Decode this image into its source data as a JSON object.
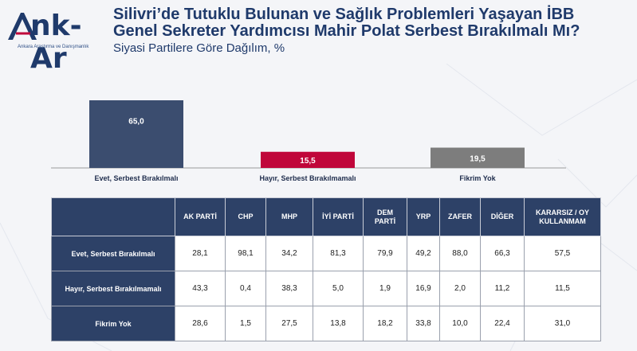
{
  "logo": {
    "name": "Ank-Ar",
    "tagline": "Ankara Araştırma ve Danışmanlık"
  },
  "header": {
    "title_line1": "Silivri’de Tutuklu Bulunan ve Sağlık Problemleri Yaşayan İBB",
    "title_line2": "Genel Sekreter Yardımcısı Mahir Polat Serbest Bırakılmalı Mı?",
    "subtitle": "Siyasi Partilere Göre Dağılım, %"
  },
  "colors": {
    "navy": "#3b4d6f",
    "red": "#c0063a",
    "gray": "#7d7d7d",
    "header": "#2d4167"
  },
  "chart_data": {
    "type": "bar",
    "categories": [
      "Evet, Serbest Bırakılmalı",
      "Hayır, Serbest Bırakılmamalı",
      "Fikrim Yok"
    ],
    "values": [
      65.0,
      15.5,
      19.5
    ],
    "labels": [
      "65,0",
      "15,5",
      "19,5"
    ],
    "colors": [
      "#3b4d6f",
      "#c0063a",
      "#7d7d7d"
    ],
    "ylim": [
      0,
      65
    ]
  },
  "table": {
    "columns": [
      "AK PARTİ",
      "CHP",
      "MHP",
      "İYİ PARTİ",
      "DEM PARTİ",
      "YRP",
      "ZAFER",
      "DİĞER",
      "KARARSIZ / OY KULLANMAM"
    ],
    "rows": [
      {
        "label": "Evet, Serbest Bırakılmalı",
        "values": [
          "28,1",
          "98,1",
          "34,2",
          "81,3",
          "79,9",
          "49,2",
          "88,0",
          "66,3",
          "57,5"
        ]
      },
      {
        "label": "Hayır, Serbest Bırakılmamalı",
        "values": [
          "43,3",
          "0,4",
          "38,3",
          "5,0",
          "1,9",
          "16,9",
          "2,0",
          "11,2",
          "11,5"
        ]
      },
      {
        "label": "Fikrim Yok",
        "values": [
          "28,6",
          "1,5",
          "27,5",
          "13,8",
          "18,2",
          "33,8",
          "10,0",
          "22,4",
          "31,0"
        ]
      }
    ]
  }
}
